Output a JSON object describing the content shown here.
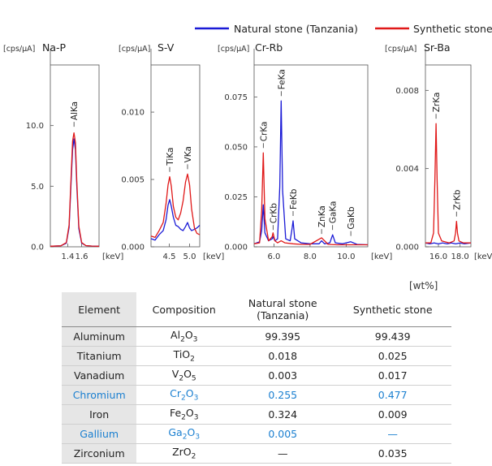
{
  "chart_data": [
    {
      "type": "line",
      "title": "Na-P",
      "ylabel": "[cps/μA]",
      "xlabel": "[keV]",
      "xlim": [
        1.15,
        1.85
      ],
      "ylim": [
        0,
        15
      ],
      "xticks": [
        1.4,
        1.6
      ],
      "yticks": [
        0.0,
        5.0,
        10.0
      ],
      "ytick_labels": [
        "0.0",
        "5.0",
        "10.0"
      ],
      "annotations": [
        {
          "label": "AlKa",
          "x": 1.49,
          "y": 9.5
        }
      ],
      "series": [
        {
          "name": "Natural stone (Tanzania)",
          "color": "#1a1ad6",
          "x": [
            1.15,
            1.3,
            1.38,
            1.42,
            1.45,
            1.47,
            1.49,
            1.51,
            1.53,
            1.56,
            1.6,
            1.66,
            1.75,
            1.85
          ],
          "y": [
            0.05,
            0.08,
            0.3,
            1.6,
            5.5,
            8.0,
            8.9,
            8.0,
            5.0,
            1.5,
            0.3,
            0.1,
            0.06,
            0.05
          ]
        },
        {
          "name": "Synthetic stone",
          "color": "#e01818",
          "x": [
            1.15,
            1.3,
            1.38,
            1.42,
            1.45,
            1.47,
            1.49,
            1.51,
            1.53,
            1.56,
            1.6,
            1.66,
            1.75,
            1.85
          ],
          "y": [
            0.05,
            0.08,
            0.35,
            1.8,
            6.0,
            8.7,
            9.4,
            8.6,
            5.4,
            1.7,
            0.35,
            0.1,
            0.06,
            0.05
          ]
        }
      ]
    },
    {
      "type": "line",
      "title": "S-V",
      "ylabel": "[cps/μA]",
      "xlabel": "[keV]",
      "xlim": [
        4.05,
        5.25
      ],
      "ylim": [
        0,
        0.0135
      ],
      "xticks": [
        4.5,
        5.0
      ],
      "yticks": [
        0.0,
        0.005,
        0.01
      ],
      "ytick_labels": [
        "0.000",
        "0.005",
        "0.010"
      ],
      "annotations": [
        {
          "label": "TiKa",
          "x": 4.51,
          "y": 0.0052
        },
        {
          "label": "VKa",
          "x": 4.95,
          "y": 0.0054
        }
      ],
      "series": [
        {
          "name": "Natural stone (Tanzania)",
          "color": "#1a1ad6",
          "x": [
            4.05,
            4.15,
            4.25,
            4.35,
            4.42,
            4.47,
            4.51,
            4.55,
            4.6,
            4.66,
            4.72,
            4.78,
            4.84,
            4.9,
            4.95,
            5.0,
            5.05,
            5.12,
            5.18,
            5.25
          ],
          "y": [
            0.0006,
            0.0005,
            0.0009,
            0.0012,
            0.002,
            0.0031,
            0.0035,
            0.003,
            0.0022,
            0.0016,
            0.0015,
            0.0013,
            0.0012,
            0.0015,
            0.0018,
            0.0014,
            0.0012,
            0.0013,
            0.0014,
            0.0016
          ]
        },
        {
          "name": "Synthetic stone",
          "color": "#e01818",
          "x": [
            4.05,
            4.15,
            4.25,
            4.35,
            4.42,
            4.47,
            4.51,
            4.55,
            4.6,
            4.66,
            4.72,
            4.78,
            4.84,
            4.9,
            4.95,
            5.0,
            5.05,
            5.12,
            5.18,
            5.25
          ],
          "y": [
            0.0008,
            0.0007,
            0.0012,
            0.0018,
            0.0032,
            0.0046,
            0.0052,
            0.0045,
            0.003,
            0.0022,
            0.002,
            0.0025,
            0.0034,
            0.0048,
            0.0054,
            0.0046,
            0.0028,
            0.0014,
            0.001,
            0.0009
          ]
        }
      ]
    },
    {
      "type": "line",
      "title": "Cr-Rb",
      "ylabel": "[cps/μA]",
      "xlabel": "[keV]",
      "xlim": [
        4.9,
        11.2
      ],
      "ylim": [
        0,
        0.091
      ],
      "xticks": [
        6.0,
        8.0,
        10.0
      ],
      "yticks": [
        0.0,
        0.025,
        0.05,
        0.075
      ],
      "ytick_labels": [
        "0.000",
        "0.025",
        "0.050",
        "0.075"
      ],
      "annotations": [
        {
          "label": "CrKa",
          "x": 5.41,
          "y": 0.047
        },
        {
          "label": "CrKb",
          "x": 5.95,
          "y": 0.006
        },
        {
          "label": "FeKa",
          "x": 6.4,
          "y": 0.073
        },
        {
          "label": "FeKb",
          "x": 7.06,
          "y": 0.013
        },
        {
          "label": "ZnKa",
          "x": 8.64,
          "y": 0.004
        },
        {
          "label": "GaKa",
          "x": 9.25,
          "y": 0.006
        },
        {
          "label": "GaKb",
          "x": 10.26,
          "y": 0.003
        }
      ],
      "series": [
        {
          "name": "Natural stone (Tanzania)",
          "color": "#1a1ad6",
          "x": [
            4.9,
            5.2,
            5.32,
            5.41,
            5.5,
            5.7,
            5.9,
            5.95,
            6.05,
            6.2,
            6.32,
            6.4,
            6.48,
            6.65,
            6.9,
            7.0,
            7.06,
            7.15,
            7.5,
            8.0,
            8.5,
            8.64,
            8.8,
            9.1,
            9.25,
            9.4,
            9.8,
            10.26,
            10.6,
            11.2
          ],
          "y": [
            0.0015,
            0.0025,
            0.008,
            0.021,
            0.007,
            0.003,
            0.004,
            0.005,
            0.003,
            0.004,
            0.03,
            0.073,
            0.028,
            0.004,
            0.003,
            0.009,
            0.013,
            0.004,
            0.002,
            0.0015,
            0.0015,
            0.003,
            0.0015,
            0.002,
            0.006,
            0.002,
            0.0015,
            0.0025,
            0.0012,
            0.001
          ]
        },
        {
          "name": "Synthetic stone",
          "color": "#e01818",
          "x": [
            4.9,
            5.2,
            5.32,
            5.41,
            5.5,
            5.7,
            5.9,
            5.95,
            6.05,
            6.2,
            6.4,
            6.6,
            7.06,
            7.5,
            8.0,
            8.64,
            9.0,
            9.5,
            10.0,
            10.5,
            11.2
          ],
          "y": [
            0.0015,
            0.002,
            0.018,
            0.047,
            0.014,
            0.003,
            0.005,
            0.007,
            0.003,
            0.002,
            0.003,
            0.002,
            0.0015,
            0.0012,
            0.0012,
            0.0045,
            0.0012,
            0.001,
            0.001,
            0.001,
            0.001
          ]
        }
      ]
    },
    {
      "type": "line",
      "title": "Sr-Ba",
      "ylabel": "[cps/μA]",
      "xlabel": "[keV]",
      "xlim": [
        14.8,
        19.0
      ],
      "ylim": [
        0,
        0.0093
      ],
      "xticks": [
        16.0,
        18.0
      ],
      "yticks": [
        0.0,
        0.004,
        0.008
      ],
      "ytick_labels": [
        "0.000",
        "0.004",
        "0.008"
      ],
      "annotations": [
        {
          "label": "ZrKa",
          "x": 15.78,
          "y": 0.0063
        },
        {
          "label": "ZrKb",
          "x": 17.67,
          "y": 0.0013
        }
      ],
      "series": [
        {
          "name": "Natural stone (Tanzania)",
          "color": "#1a1ad6",
          "x": [
            14.8,
            15.2,
            15.6,
            16.0,
            16.4,
            16.8,
            17.2,
            17.6,
            18.0,
            18.4,
            19.0
          ],
          "y": [
            0.0002,
            0.00015,
            0.0002,
            0.00015,
            0.0002,
            0.00015,
            0.0002,
            0.00015,
            0.0002,
            0.00015,
            0.0002
          ]
        },
        {
          "name": "Synthetic stone",
          "color": "#e01818",
          "x": [
            14.8,
            15.3,
            15.55,
            15.68,
            15.78,
            15.88,
            16.0,
            16.3,
            17.0,
            17.45,
            17.58,
            17.67,
            17.76,
            17.9,
            18.3,
            19.0
          ],
          "y": [
            0.0002,
            0.0002,
            0.0007,
            0.0035,
            0.0063,
            0.0034,
            0.0007,
            0.0003,
            0.0002,
            0.0003,
            0.0007,
            0.0013,
            0.0007,
            0.0003,
            0.0002,
            0.0002
          ]
        }
      ]
    }
  ],
  "legend": {
    "natural_label": "Natural stone (Tanzania)",
    "synthetic_label": "Synthetic stone",
    "natural_color": "#1a1ad6",
    "synthetic_color": "#e01818"
  },
  "table": {
    "unit_note": "[wt%]",
    "headers": {
      "element": "Element",
      "composition": "Composition",
      "natural_line1": "Natural stone",
      "natural_line2": "(Tanzania)",
      "synthetic": "Synthetic stone"
    },
    "highlight_color": "#1a7fd0",
    "rows": [
      {
        "element": "Aluminum",
        "formula": [
          "Al",
          "2",
          "O",
          "3"
        ],
        "natural": "99.395",
        "synthetic": "99.439",
        "highlight": false
      },
      {
        "element": "Titanium",
        "formula": [
          "TiO",
          "2",
          "",
          ""
        ],
        "natural": "0.018",
        "synthetic": "0.025",
        "highlight": false
      },
      {
        "element": "Vanadium",
        "formula": [
          "V",
          "2",
          "O",
          "5"
        ],
        "natural": "0.003",
        "synthetic": "0.017",
        "highlight": false
      },
      {
        "element": "Chromium",
        "formula": [
          "Cr",
          "2",
          "O",
          "3"
        ],
        "natural": "0.255",
        "synthetic": "0.477",
        "highlight": true
      },
      {
        "element": "Iron",
        "formula": [
          "Fe",
          "2",
          "O",
          "3"
        ],
        "natural": "0.324",
        "synthetic": "0.009",
        "highlight": false
      },
      {
        "element": "Gallium",
        "formula": [
          "Ga",
          "2",
          "O",
          "3"
        ],
        "natural": "0.005",
        "synthetic": "—",
        "highlight": true
      },
      {
        "element": "Zirconium",
        "formula": [
          "ZrO",
          "2",
          "",
          ""
        ],
        "natural": "—",
        "synthetic": "0.035",
        "highlight": false
      }
    ]
  }
}
